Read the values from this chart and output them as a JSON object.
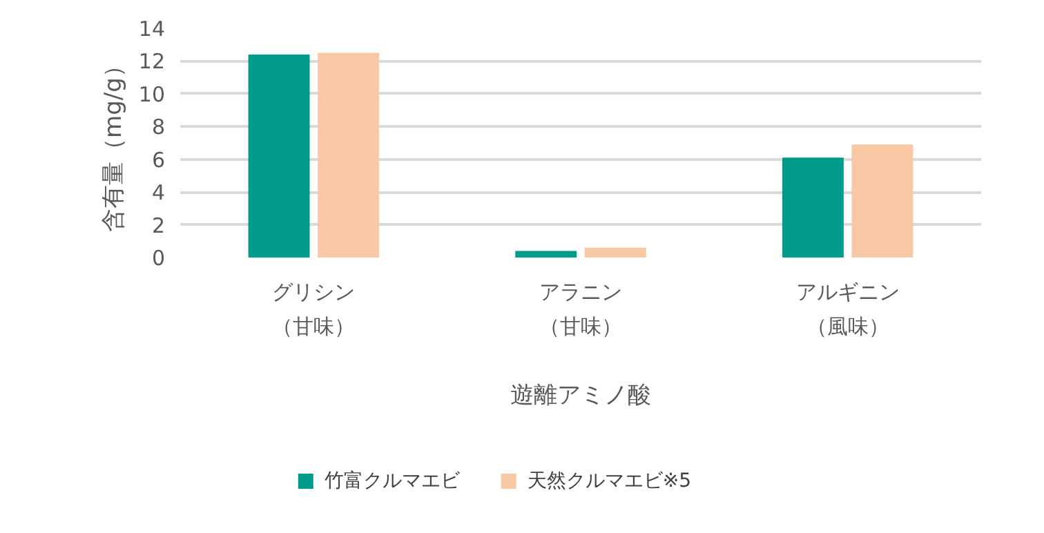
{
  "chart_data": {
    "type": "bar",
    "xlabel": "遊離アミノ酸",
    "ylabel": "含有量（mg/g）",
    "categories": [
      "グリシン（甘味）",
      "アラニン（甘味）",
      "アルギニン（風味）"
    ],
    "series": [
      {
        "name": "竹富クルマエビ",
        "color": "#009b8a",
        "values": [
          12.4,
          0.4,
          6.1
        ]
      },
      {
        "name": "天然クルマエビ※5",
        "color": "#f9c9a6",
        "values": [
          12.5,
          0.6,
          6.9
        ]
      }
    ],
    "ylim": [
      0,
      14
    ],
    "yticks": [
      0,
      2,
      4,
      6,
      8,
      10,
      12,
      14
    ],
    "grid": "y",
    "legend": "bottom"
  }
}
